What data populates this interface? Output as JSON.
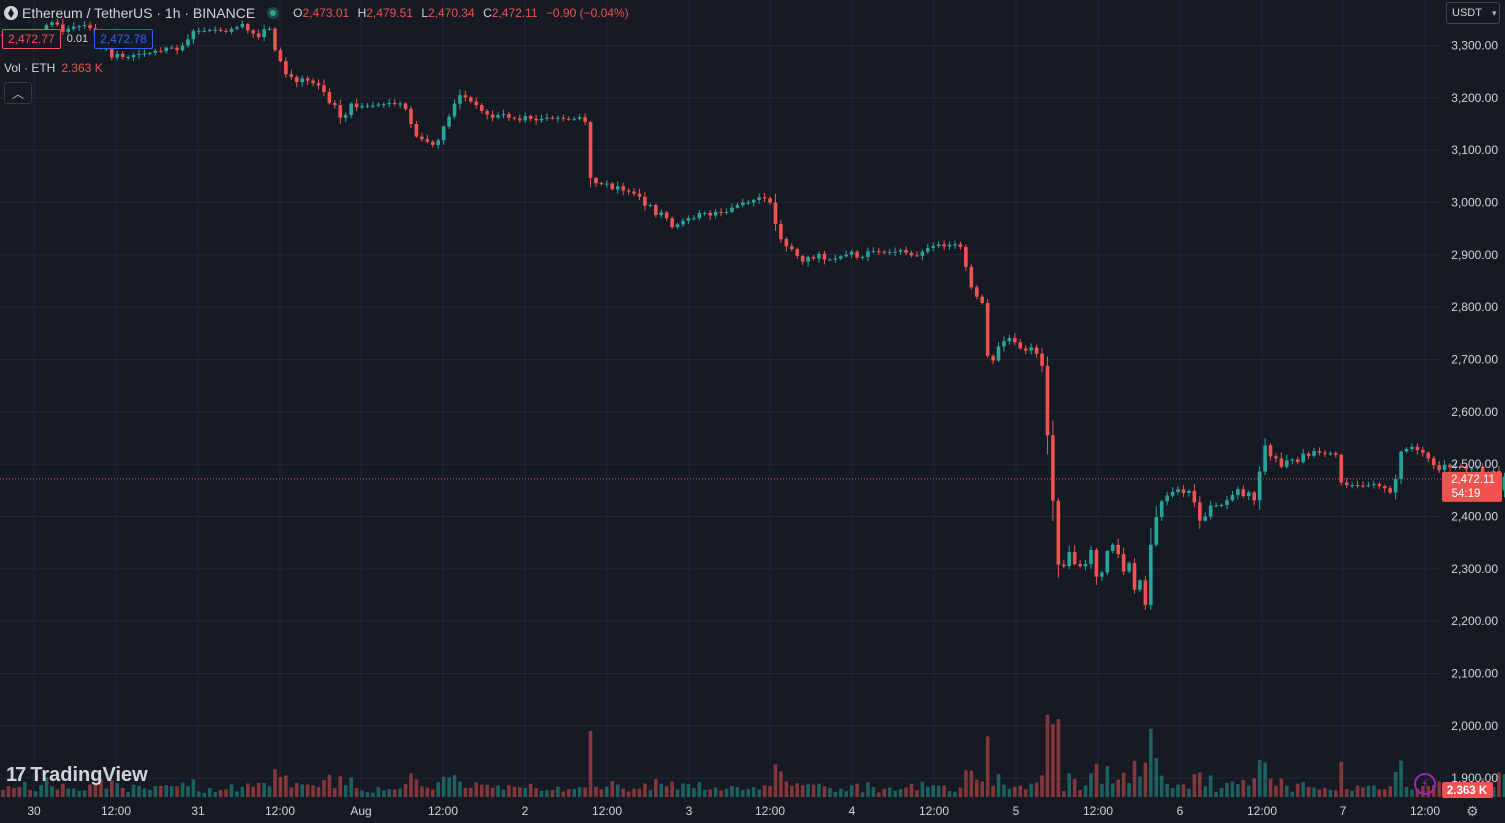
{
  "legend": {
    "symbol": "Ethereum / TetherUS · 1h · BINANCE",
    "o_label": "O",
    "o_value": "2,473.01",
    "h_label": "H",
    "h_value": "2,479.51",
    "l_label": "L",
    "l_value": "2,470.34",
    "c_label": "C",
    "c_value": "2,472.11",
    "change": "−0.90 (−0.04%)"
  },
  "quote": {
    "bid": "2,472.77",
    "spread": "0.01",
    "ask": "2,472.78"
  },
  "volume": {
    "label": "Vol · ETH",
    "value": "2.363 K"
  },
  "currency": {
    "label": "USDT"
  },
  "last_price": {
    "value": "2,472.11",
    "countdown": "54:19"
  },
  "logo": {
    "text": "TradingView"
  },
  "colors": {
    "up": "#26a69a",
    "down": "#ef5350",
    "background": "#161a25",
    "grid": "#232732",
    "text": "#d1d4dc"
  },
  "chart_data": {
    "type": "candlestick",
    "y_ticks": [
      "3,300.00",
      "3,200.00",
      "3,100.00",
      "3,000.00",
      "2,900.00",
      "2,800.00",
      "2,700.00",
      "2,600.00",
      "2,500.00",
      "2,400.00",
      "2,300.00",
      "2,200.00",
      "2,100.00",
      "2,000.00",
      "1,900.00"
    ],
    "ylim": [
      1890,
      3340
    ],
    "x_ticks": [
      "30",
      "12:00",
      "31",
      "12:00",
      "Aug",
      "12:00",
      "2",
      "12:00",
      "3",
      "12:00",
      "4",
      "12:00",
      "5",
      "12:00",
      "6",
      "12:00",
      "7",
      "12:00"
    ],
    "close": [
      3318,
      3312,
      3310,
      3309,
      3323,
      3320,
      3321,
      3323,
      3339,
      3344,
      3340,
      3326,
      3332,
      3336,
      3337,
      3339,
      3333,
      3320,
      3295,
      3295,
      3277,
      3284,
      3278,
      3278,
      3282,
      3284,
      3285,
      3286,
      3290,
      3289,
      3296,
      3296,
      3291,
      3300,
      3312,
      3328,
      3328,
      3328,
      3330,
      3330,
      3328,
      3326,
      3332,
      3335,
      3341,
      3329,
      3323,
      3316,
      3331,
      3332,
      3291,
      3270,
      3245,
      3240,
      3230,
      3237,
      3233,
      3228,
      3224,
      3211,
      3190,
      3186,
      3162,
      3167,
      3189,
      3182,
      3184,
      3185,
      3185,
      3187,
      3188,
      3190,
      3188,
      3189,
      3179,
      3150,
      3126,
      3121,
      3116,
      3110,
      3119,
      3145,
      3164,
      3189,
      3205,
      3201,
      3193,
      3186,
      3175,
      3168,
      3162,
      3167,
      3169,
      3162,
      3161,
      3157,
      3165,
      3160,
      3157,
      3160,
      3162,
      3161,
      3162,
      3160,
      3159,
      3160,
      3163,
      3154,
      3047,
      3037,
      3036,
      3036,
      3025,
      3031,
      3023,
      3021,
      3017,
      3011,
      2994,
      2995,
      2976,
      2981,
      2970,
      2953,
      2958,
      2965,
      2970,
      2970,
      2980,
      2980,
      2975,
      2982,
      2980,
      2982,
      2990,
      2995,
      3000,
      3000,
      3005,
      3010,
      3008,
      3000,
      2959,
      2930,
      2916,
      2911,
      2898,
      2887,
      2896,
      2893,
      2902,
      2891,
      2891,
      2893,
      2897,
      2900,
      2906,
      2895,
      2896,
      2907,
      2907,
      2906,
      2905,
      2905,
      2906,
      2909,
      2904,
      2899,
      2898,
      2906,
      2913,
      2917,
      2920,
      2916,
      2919,
      2920,
      2915,
      2877,
      2838,
      2820,
      2808,
      2707,
      2698,
      2725,
      2735,
      2741,
      2733,
      2721,
      2717,
      2723,
      2711,
      2688,
      2555,
      2430,
      2308,
      2305,
      2332,
      2309,
      2305,
      2309,
      2336,
      2285,
      2293,
      2334,
      2346,
      2328,
      2295,
      2311,
      2260,
      2278,
      2231,
      2346,
      2399,
      2429,
      2440,
      2447,
      2452,
      2445,
      2449,
      2427,
      2392,
      2400,
      2421,
      2421,
      2422,
      2431,
      2441,
      2452,
      2439,
      2446,
      2431,
      2486,
      2536,
      2515,
      2511,
      2495,
      2507,
      2509,
      2504,
      2520,
      2516,
      2525,
      2522,
      2520,
      2521,
      2518,
      2465,
      2460,
      2460,
      2459,
      2458,
      2460,
      2462,
      2458,
      2454,
      2446,
      2472,
      2524,
      2529,
      2533,
      2527,
      2522,
      2511,
      2498,
      2489,
      2499,
      2494,
      2497,
      2496,
      2490,
      2492,
      2495,
      2475,
      2479,
      2487,
      2450,
      2476,
      2489,
      2501,
      2505,
      2510,
      2506,
      2513,
      2511,
      2501,
      2506,
      2506,
      2512,
      2505,
      2520,
      2513,
      2506,
      2495,
      2507,
      2510,
      2505,
      2472
    ],
    "volume_scale": {
      "max_label": "2.363 K"
    }
  }
}
